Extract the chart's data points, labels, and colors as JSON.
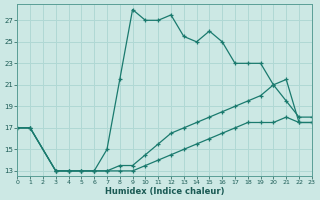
{
  "xlabel": "Humidex (Indice chaleur)",
  "bg_color": "#cce8e4",
  "line_color": "#1a7a6e",
  "grid_color": "#b0d8d4",
  "xlim": [
    0,
    23
  ],
  "ylim": [
    12.5,
    28.5
  ],
  "xtick_labels": [
    "0",
    "1",
    "2",
    "3",
    "4",
    "5",
    "6",
    "7",
    "8",
    "9",
    "10",
    "11",
    "12",
    "13",
    "14",
    "15",
    "16",
    "17",
    "18",
    "19",
    "20",
    "21",
    "2223"
  ],
  "ytick_labels": [
    "13",
    "15",
    "17",
    "19",
    "21",
    "23",
    "25",
    "27"
  ],
  "ytick_vals": [
    13,
    15,
    17,
    19,
    21,
    23,
    25,
    27
  ],
  "line1_x": [
    0,
    1,
    3,
    4,
    5,
    6,
    7,
    8,
    9,
    10,
    11,
    12,
    13,
    14,
    15,
    16,
    17,
    18,
    19,
    20,
    21,
    22,
    23
  ],
  "line1_y": [
    17,
    17,
    13,
    13,
    13,
    13,
    15,
    21.5,
    28,
    27,
    27,
    27.5,
    25.5,
    25,
    26,
    25,
    23,
    23,
    23,
    21,
    19.5,
    18,
    18
  ],
  "line2_x": [
    0,
    1,
    3,
    4,
    5,
    6,
    7,
    8,
    9,
    10,
    11,
    12,
    13,
    14,
    15,
    16,
    17,
    18,
    19,
    20,
    21,
    22,
    23
  ],
  "line2_y": [
    17,
    17,
    13,
    13,
    13,
    13,
    13,
    13.5,
    13.5,
    14.5,
    15.5,
    16.5,
    17,
    17.5,
    18,
    18.5,
    19,
    19.5,
    20,
    21,
    21.5,
    17.5,
    17.5
  ],
  "line3_x": [
    0,
    1,
    3,
    4,
    5,
    6,
    7,
    8,
    9,
    10,
    11,
    12,
    13,
    14,
    15,
    16,
    17,
    18,
    19,
    20,
    21,
    22,
    23
  ],
  "line3_y": [
    17,
    17,
    13,
    13,
    13,
    13,
    13,
    13,
    13,
    13.5,
    14,
    14.5,
    15,
    15.5,
    16,
    16.5,
    17,
    17.5,
    17.5,
    17.5,
    18,
    17.5,
    17.5
  ]
}
